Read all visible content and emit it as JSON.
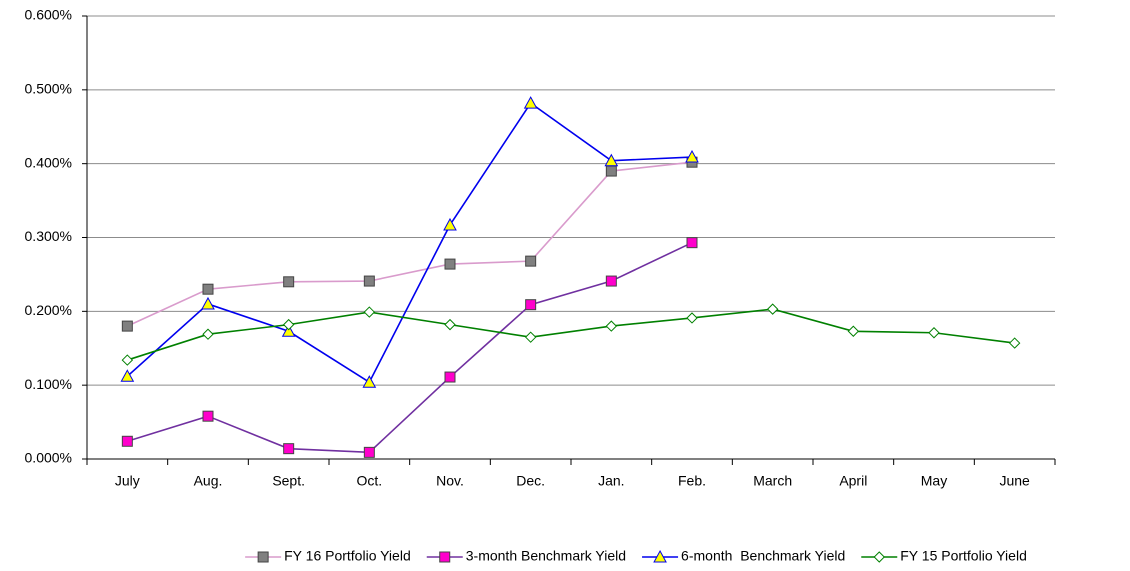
{
  "chart_data": {
    "type": "line",
    "categories": [
      "July",
      "Aug.",
      "Sept.",
      "Oct.",
      "Nov.",
      "Dec.",
      "Jan.",
      "Feb.",
      "March",
      "April",
      "May",
      "June"
    ],
    "ylim": [
      0,
      0.6
    ],
    "yticks": [
      {
        "value": 0,
        "label": "0.000%"
      },
      {
        "value": 0.1,
        "label": "0.100%"
      },
      {
        "value": 0.2,
        "label": "0.200%"
      },
      {
        "value": 0.3,
        "label": "0.300%"
      },
      {
        "value": 0.4,
        "label": "0.400%"
      },
      {
        "value": 0.5,
        "label": "0.500%"
      },
      {
        "value": 0.6,
        "label": "0.600%"
      }
    ],
    "grid": true,
    "legend": "bottom",
    "series": [
      {
        "name": "FY 16 Portfolio Yield",
        "color": "#d99bcc",
        "marker": "square",
        "marker_color": "#808080",
        "values": [
          0.18,
          0.23,
          0.24,
          0.241,
          0.264,
          0.268,
          0.39,
          0.402,
          null,
          null,
          null,
          null
        ]
      },
      {
        "name": "3-month Benchmark Yield",
        "color": "#7030a0",
        "marker": "square",
        "marker_color": "#ff00cc",
        "values": [
          0.024,
          0.058,
          0.014,
          0.009,
          0.111,
          0.209,
          0.241,
          0.293,
          null,
          null,
          null,
          null
        ]
      },
      {
        "name": "6-month  Benchmark Yield",
        "color": "#0000ee",
        "marker": "triangle",
        "marker_color": "#ffff00",
        "values": [
          0.112,
          0.21,
          0.173,
          0.104,
          0.317,
          0.482,
          0.404,
          0.409,
          null,
          null,
          null,
          null
        ]
      },
      {
        "name": "FY 15 Portfolio Yield",
        "color": "#008000",
        "marker": "diamond",
        "marker_color": "#ffffff",
        "values": [
          0.134,
          0.169,
          0.182,
          0.199,
          0.182,
          0.165,
          0.18,
          0.191,
          0.203,
          0.173,
          0.171,
          0.157
        ]
      }
    ]
  }
}
